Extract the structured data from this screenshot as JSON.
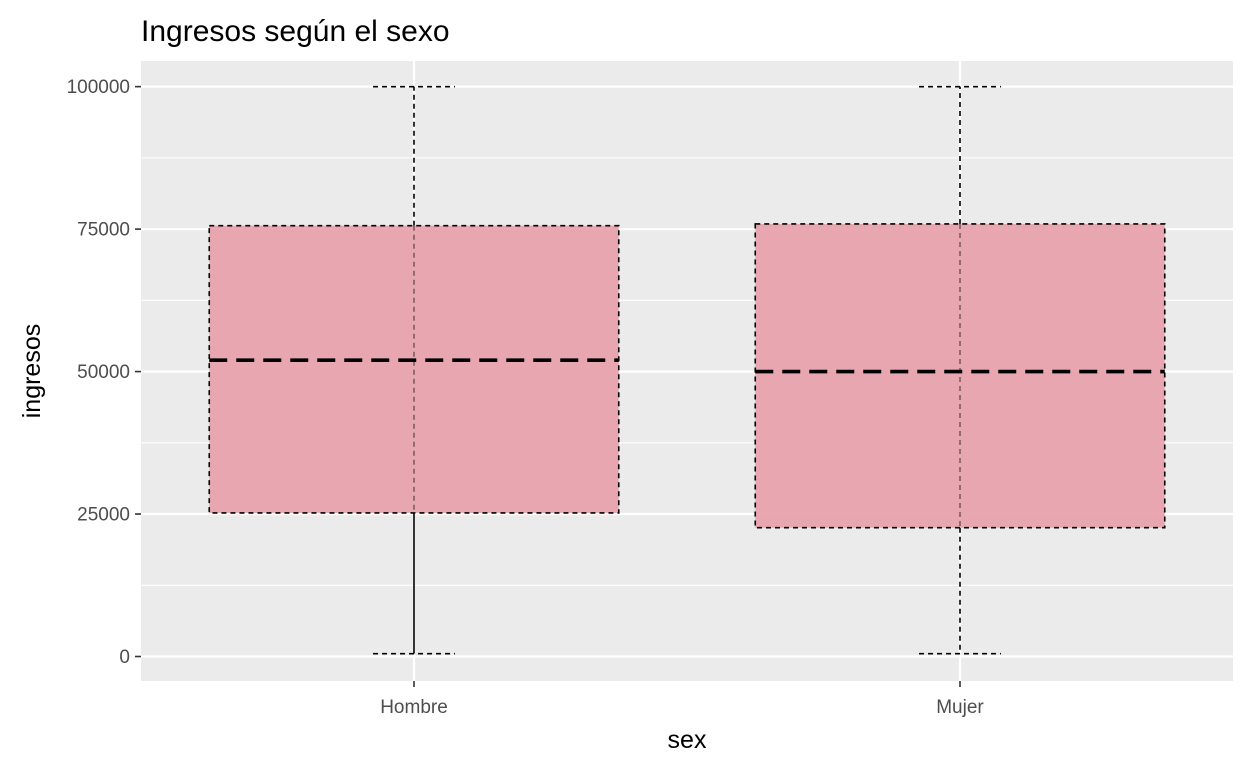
{
  "chart_data": {
    "type": "boxplot",
    "title": "Ingresos según el sexo",
    "xlabel": "sex",
    "ylabel": "ingresos",
    "categories": [
      "Hombre",
      "Mujer"
    ],
    "ylim": [
      -4300,
      104500
    ],
    "yticks": [
      0,
      25000,
      50000,
      75000,
      100000
    ],
    "yticklabels": [
      "0",
      "25000",
      "50000",
      "75000",
      "100000"
    ],
    "grid": true,
    "boxes": [
      {
        "category": "Hombre",
        "min": 500,
        "q1": 25200,
        "median": 52000,
        "q3": 75600,
        "max": 100000
      },
      {
        "category": "Mujer",
        "min": 500,
        "q1": 22600,
        "median": 50000,
        "q3": 75900,
        "max": 100000
      }
    ],
    "colors": {
      "panel": "#ebebeb",
      "grid": "#ffffff",
      "box_fill": "#e7a0aa",
      "line": "#000000",
      "tick": "#333333"
    }
  }
}
